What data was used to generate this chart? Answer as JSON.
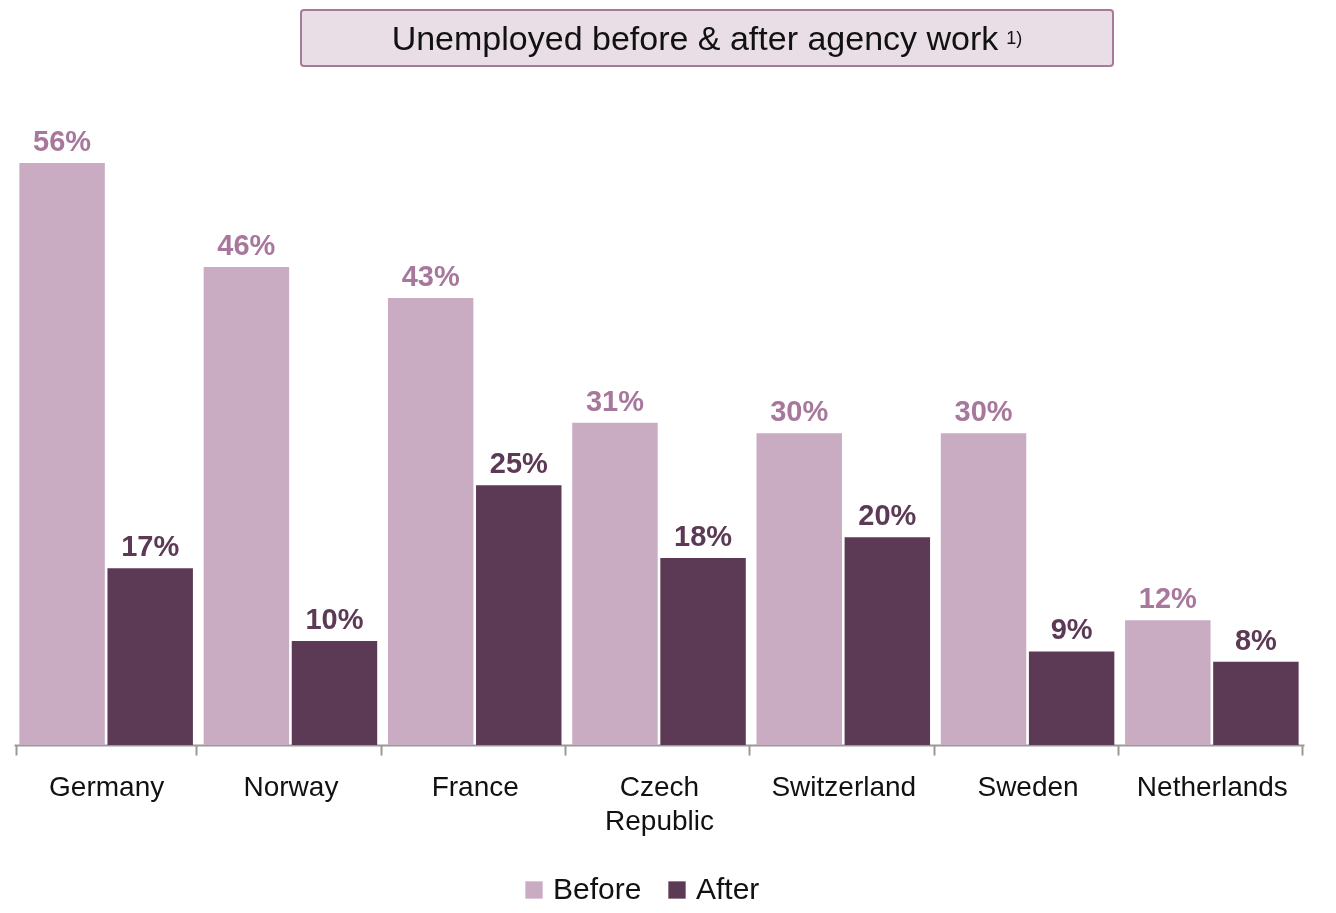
{
  "chart_data": {
    "type": "bar",
    "title": "Unemployed before & after agency work $^{1)}$",
    "categories": [
      "Germany",
      "Norway",
      "France",
      "Czech Republic",
      "Switzerland",
      "Sweden",
      "Netherlands"
    ],
    "series": [
      {
        "name": "Before",
        "color": "#c9abc2",
        "values": [
          56,
          46,
          43,
          31,
          30,
          30,
          12
        ],
        "value_labels": [
          "56%",
          "46%",
          "43%",
          "31%",
          "30%",
          "30%",
          "12%"
        ]
      },
      {
        "name": "After",
        "color": "#5c3a55",
        "values": [
          17,
          10,
          25,
          18,
          20,
          9,
          8
        ],
        "value_labels": [
          "17%",
          "10%",
          "25%",
          "18%",
          "20%",
          "9%",
          "8%"
        ]
      }
    ],
    "legend": "bottom"
  }
}
